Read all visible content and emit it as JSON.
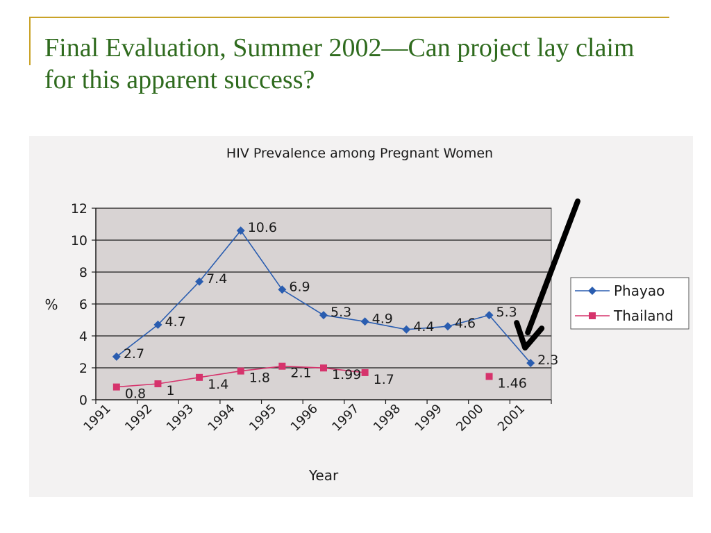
{
  "slide": {
    "title": "Final Evaluation, Summer 2002—Can project lay claim for this apparent success?",
    "accent_color": "#c9a227",
    "title_color": "#2f6b1e"
  },
  "chart_data": {
    "type": "line",
    "title": "HIV Prevalence among Pregnant Women",
    "xlabel": "Year",
    "ylabel": "%",
    "ylim": [
      0,
      12
    ],
    "yticks": [
      0,
      2,
      4,
      6,
      8,
      10,
      12
    ],
    "categories": [
      "1991",
      "1992",
      "1993",
      "1994",
      "1995",
      "1996",
      "1997",
      "1998",
      "1999",
      "2000",
      "2001"
    ],
    "grid": true,
    "legend_position": "right",
    "plot_background": "#d8d3d3",
    "series": [
      {
        "name": "Phayao",
        "color": "#2a5db0",
        "marker": "diamond",
        "x": [
          1991,
          1992,
          1993,
          1994,
          1995,
          1996,
          1997,
          1998,
          1999,
          2000,
          2001
        ],
        "values": [
          2.7,
          4.7,
          7.4,
          10.6,
          6.9,
          5.3,
          4.9,
          4.4,
          4.6,
          5.3,
          2.3
        ],
        "labels": [
          "2.7",
          "4.7",
          "7.4",
          "10.6",
          "6.9",
          "5.3",
          "4.9",
          "4.4",
          "4.6",
          "5.3",
          "2.3"
        ]
      },
      {
        "name": "Thailand",
        "color": "#d6336c",
        "marker": "square",
        "x": [
          1991,
          1992,
          1993,
          1994,
          1995,
          1996,
          1997,
          2000
        ],
        "values": [
          0.8,
          1,
          1.4,
          1.8,
          2.1,
          1.99,
          1.7,
          1.46
        ],
        "labels": [
          "0.8",
          "1",
          "1.4",
          "1.8",
          "2.1",
          "1.99",
          "1.7",
          "1.46"
        ]
      }
    ],
    "annotation": "arrow pointing to 2001 Phayao value"
  }
}
